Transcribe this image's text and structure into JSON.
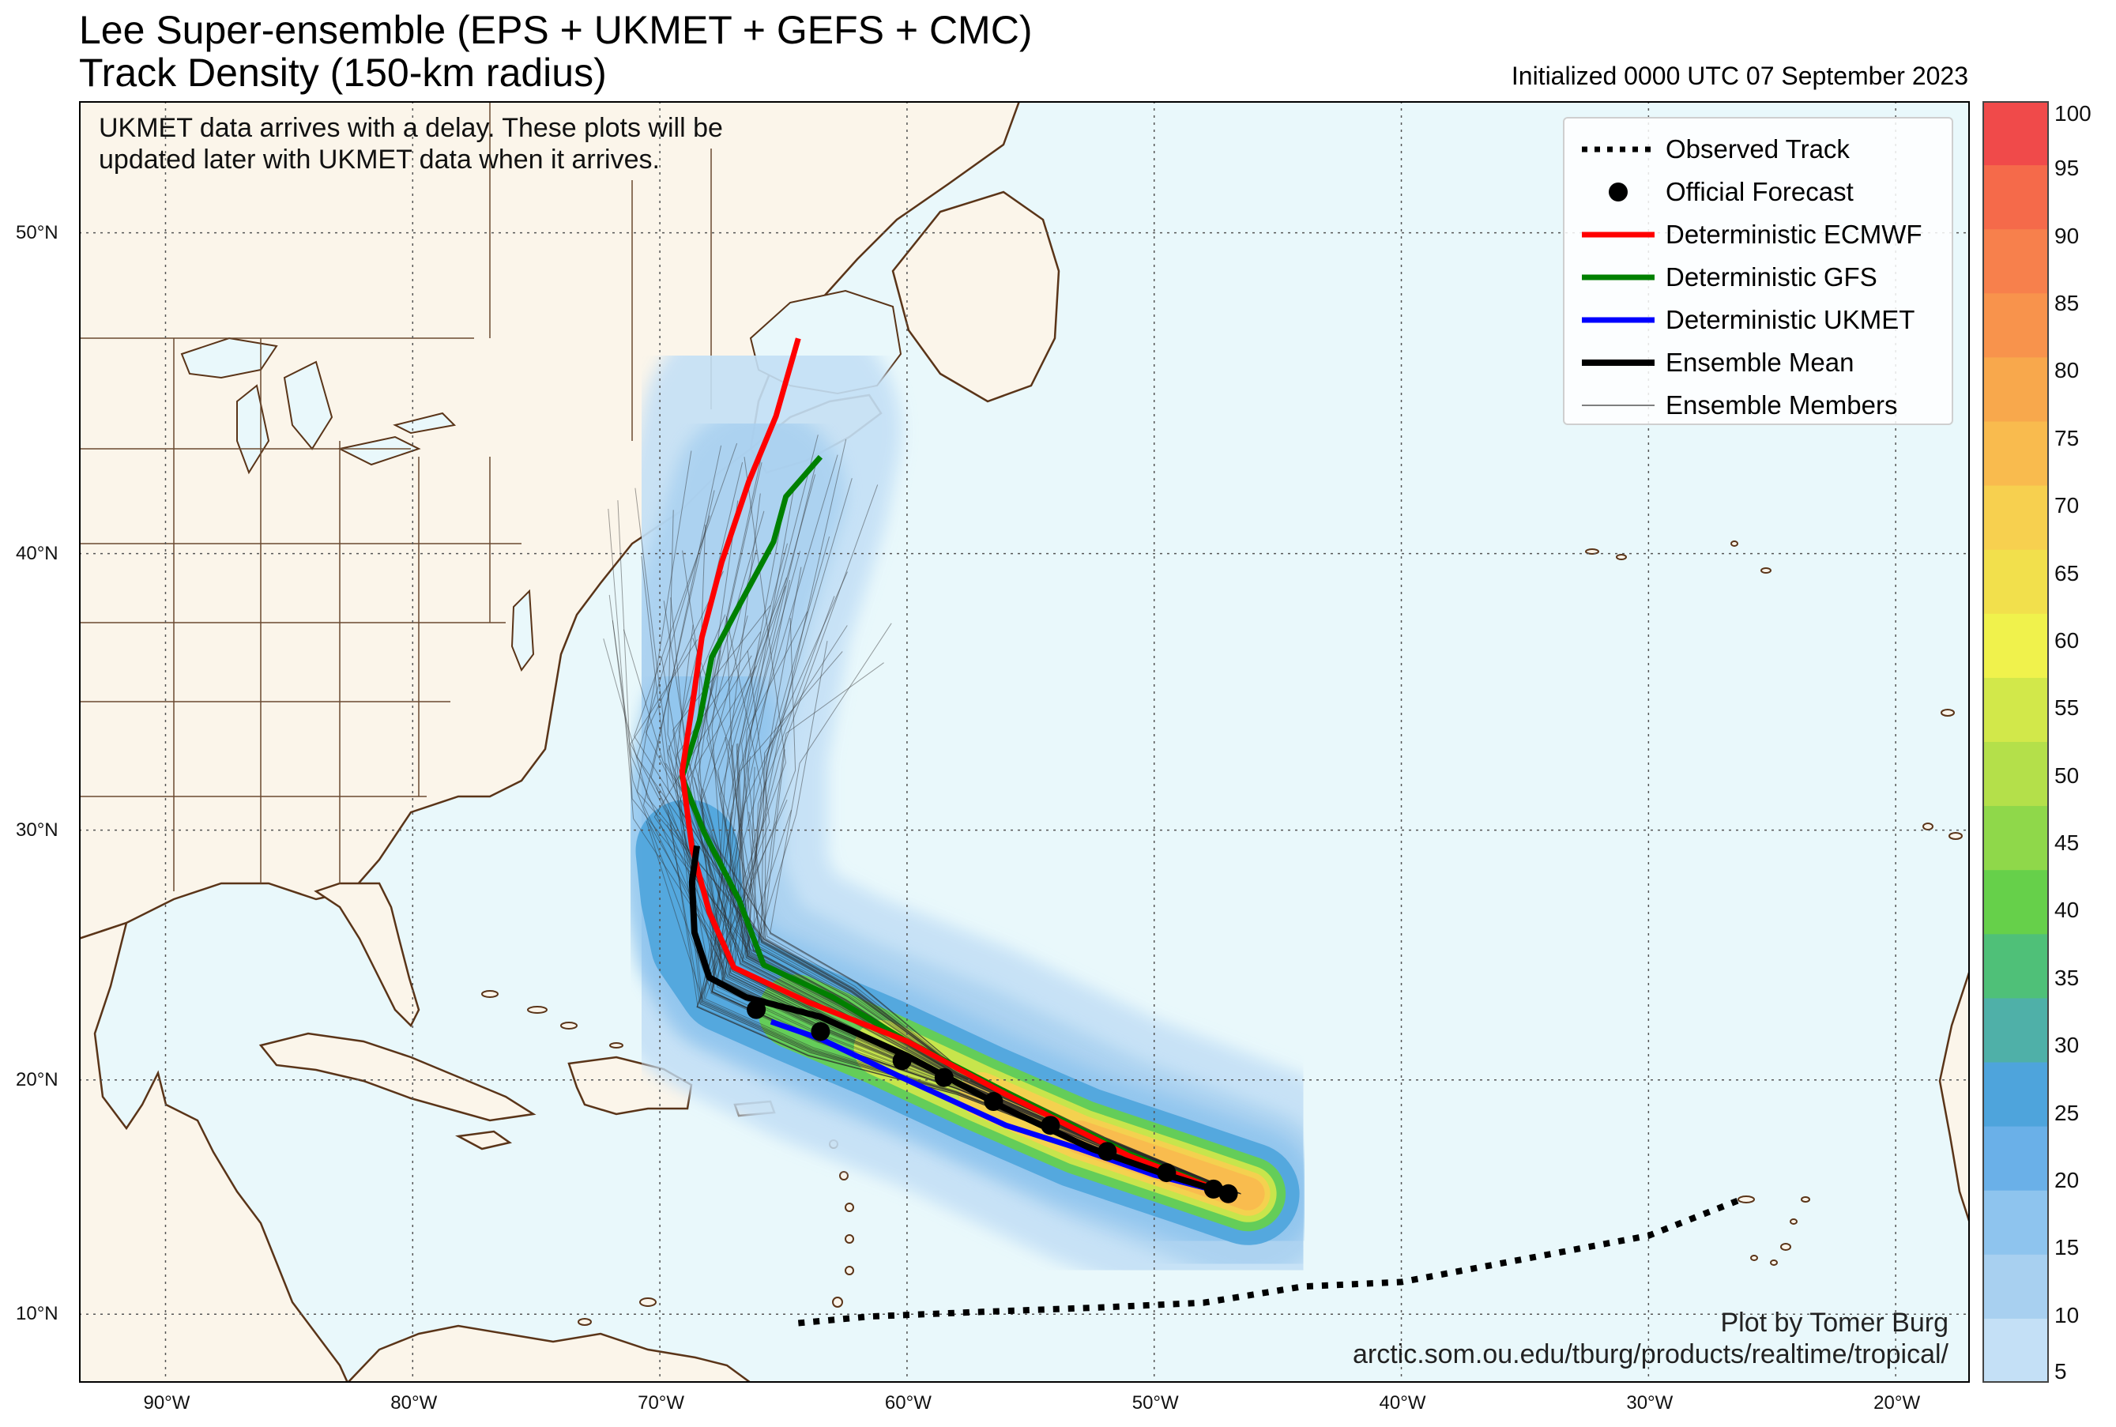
{
  "header": {
    "title_line1": "Lee Super-ensemble (EPS + UKMET + GEFS + CMC)",
    "title_line2": "Track Density (150-km radius)",
    "initialized": "Initialized 0000 UTC 07 September 2023"
  },
  "note": {
    "line1": "UKMET data arrives with a delay. These plots will be",
    "line2": "updated later with UKMET data when it arrives."
  },
  "credit": {
    "line1": "Plot by Tomer Burg",
    "line2": "arctic.som.ou.edu/tburg/products/realtime/tropical/"
  },
  "legend": [
    {
      "label": "Observed Track",
      "style": "dotted",
      "color": "#000000"
    },
    {
      "label": "Official Forecast",
      "style": "dot",
      "color": "#000000"
    },
    {
      "label": "Deterministic ECMWF",
      "style": "line",
      "color": "#ff0000"
    },
    {
      "label": "Deterministic GFS",
      "style": "line",
      "color": "#008000"
    },
    {
      "label": "Deterministic UKMET",
      "style": "line",
      "color": "#0000ff"
    },
    {
      "label": "Ensemble Mean",
      "style": "line",
      "color": "#000000"
    },
    {
      "label": "Ensemble Members",
      "style": "thin",
      "color": "#555555"
    }
  ],
  "axes": {
    "lon_labels": [
      "90°W",
      "80°W",
      "70°W",
      "60°W",
      "50°W",
      "40°W",
      "30°W",
      "20°W"
    ],
    "lat_labels": [
      "50°N",
      "40°N",
      "30°N",
      "20°N",
      "10°N"
    ]
  },
  "colorbar": {
    "ticks": [
      "100",
      "95",
      "90",
      "85",
      "80",
      "75",
      "70",
      "65",
      "60",
      "55",
      "50",
      "45",
      "40",
      "35",
      "30",
      "25",
      "20",
      "15",
      "10",
      "5"
    ],
    "colors": [
      "#f04a4a",
      "#f56a4a",
      "#f7804c",
      "#f8934c",
      "#f8a84c",
      "#f9bb4e",
      "#f7d04f",
      "#f2e04c",
      "#f0f24c",
      "#d2e84a",
      "#b4e04a",
      "#8fd84a",
      "#66d04a",
      "#4fc078",
      "#4fb0a8",
      "#4ea4dc",
      "#6ab0e8",
      "#8ec4ee",
      "#a8d0f0",
      "#c4e0f6"
    ]
  },
  "tracks": {
    "observed": [
      [
        -26.4,
        14.9
      ],
      [
        -30,
        13.4
      ],
      [
        -36,
        12.2
      ],
      [
        -40,
        11.4
      ],
      [
        -44,
        11.2
      ],
      [
        -48,
        10.5
      ],
      [
        -52,
        10.3
      ],
      [
        -57,
        10.1
      ],
      [
        -61.5,
        9.9
      ],
      [
        -64.5,
        9.6
      ]
    ],
    "official_forecast": [
      [
        -47,
        15.2
      ],
      [
        -47.6,
        15.4
      ],
      [
        -49.5,
        16.1
      ],
      [
        -51.9,
        17.0
      ],
      [
        -54.2,
        18.1
      ],
      [
        -56.5,
        19.1
      ],
      [
        -58.5,
        20.1
      ],
      [
        -60.2,
        20.8
      ],
      [
        -63.5,
        22.0
      ],
      [
        -66.1,
        22.9
      ]
    ],
    "ecmwf": [
      [
        -47.0,
        15.2
      ],
      [
        -51,
        16.8
      ],
      [
        -56,
        19.4
      ],
      [
        -60,
        21.6
      ],
      [
        -64,
        23.2
      ],
      [
        -67,
        24.6
      ],
      [
        -68.0,
        26.8
      ],
      [
        -68.7,
        29.3
      ],
      [
        -69.1,
        32.2
      ],
      [
        -68.6,
        35.2
      ],
      [
        -68.3,
        37.1
      ],
      [
        -67.5,
        39.7
      ],
      [
        -66.4,
        42.4
      ],
      [
        -65.3,
        44.5
      ],
      [
        -64.4,
        46.9
      ]
    ],
    "gfs": [
      [
        -47.0,
        15.2
      ],
      [
        -51,
        16.9
      ],
      [
        -56,
        19.5
      ],
      [
        -60,
        21.6
      ],
      [
        -63,
        23.4
      ],
      [
        -65.8,
        24.7
      ],
      [
        -66.8,
        27.3
      ],
      [
        -68.2,
        29.9
      ],
      [
        -69.1,
        32.0
      ],
      [
        -68.4,
        34.1
      ],
      [
        -67.9,
        36.4
      ],
      [
        -66.8,
        38.2
      ],
      [
        -65.4,
        40.4
      ],
      [
        -64.9,
        41.9
      ],
      [
        -63.5,
        43.2
      ]
    ],
    "ukmet": [
      [
        -47.0,
        15.2
      ],
      [
        -50,
        16.0
      ],
      [
        -53,
        17.1
      ],
      [
        -56,
        18.1
      ],
      [
        -60,
        20.0
      ],
      [
        -63.5,
        21.7
      ],
      [
        -65.5,
        22.4
      ]
    ],
    "mean": [
      [
        -47.0,
        15.2
      ],
      [
        -49.5,
        16.0
      ],
      [
        -52.5,
        17.1
      ],
      [
        -56,
        18.8
      ],
      [
        -60,
        21.0
      ],
      [
        -63.5,
        22.6
      ],
      [
        -66.5,
        23.4
      ],
      [
        -68.0,
        24.2
      ],
      [
        -68.6,
        26.0
      ],
      [
        -68.7,
        28.0
      ],
      [
        -68.5,
        29.4
      ]
    ]
  }
}
